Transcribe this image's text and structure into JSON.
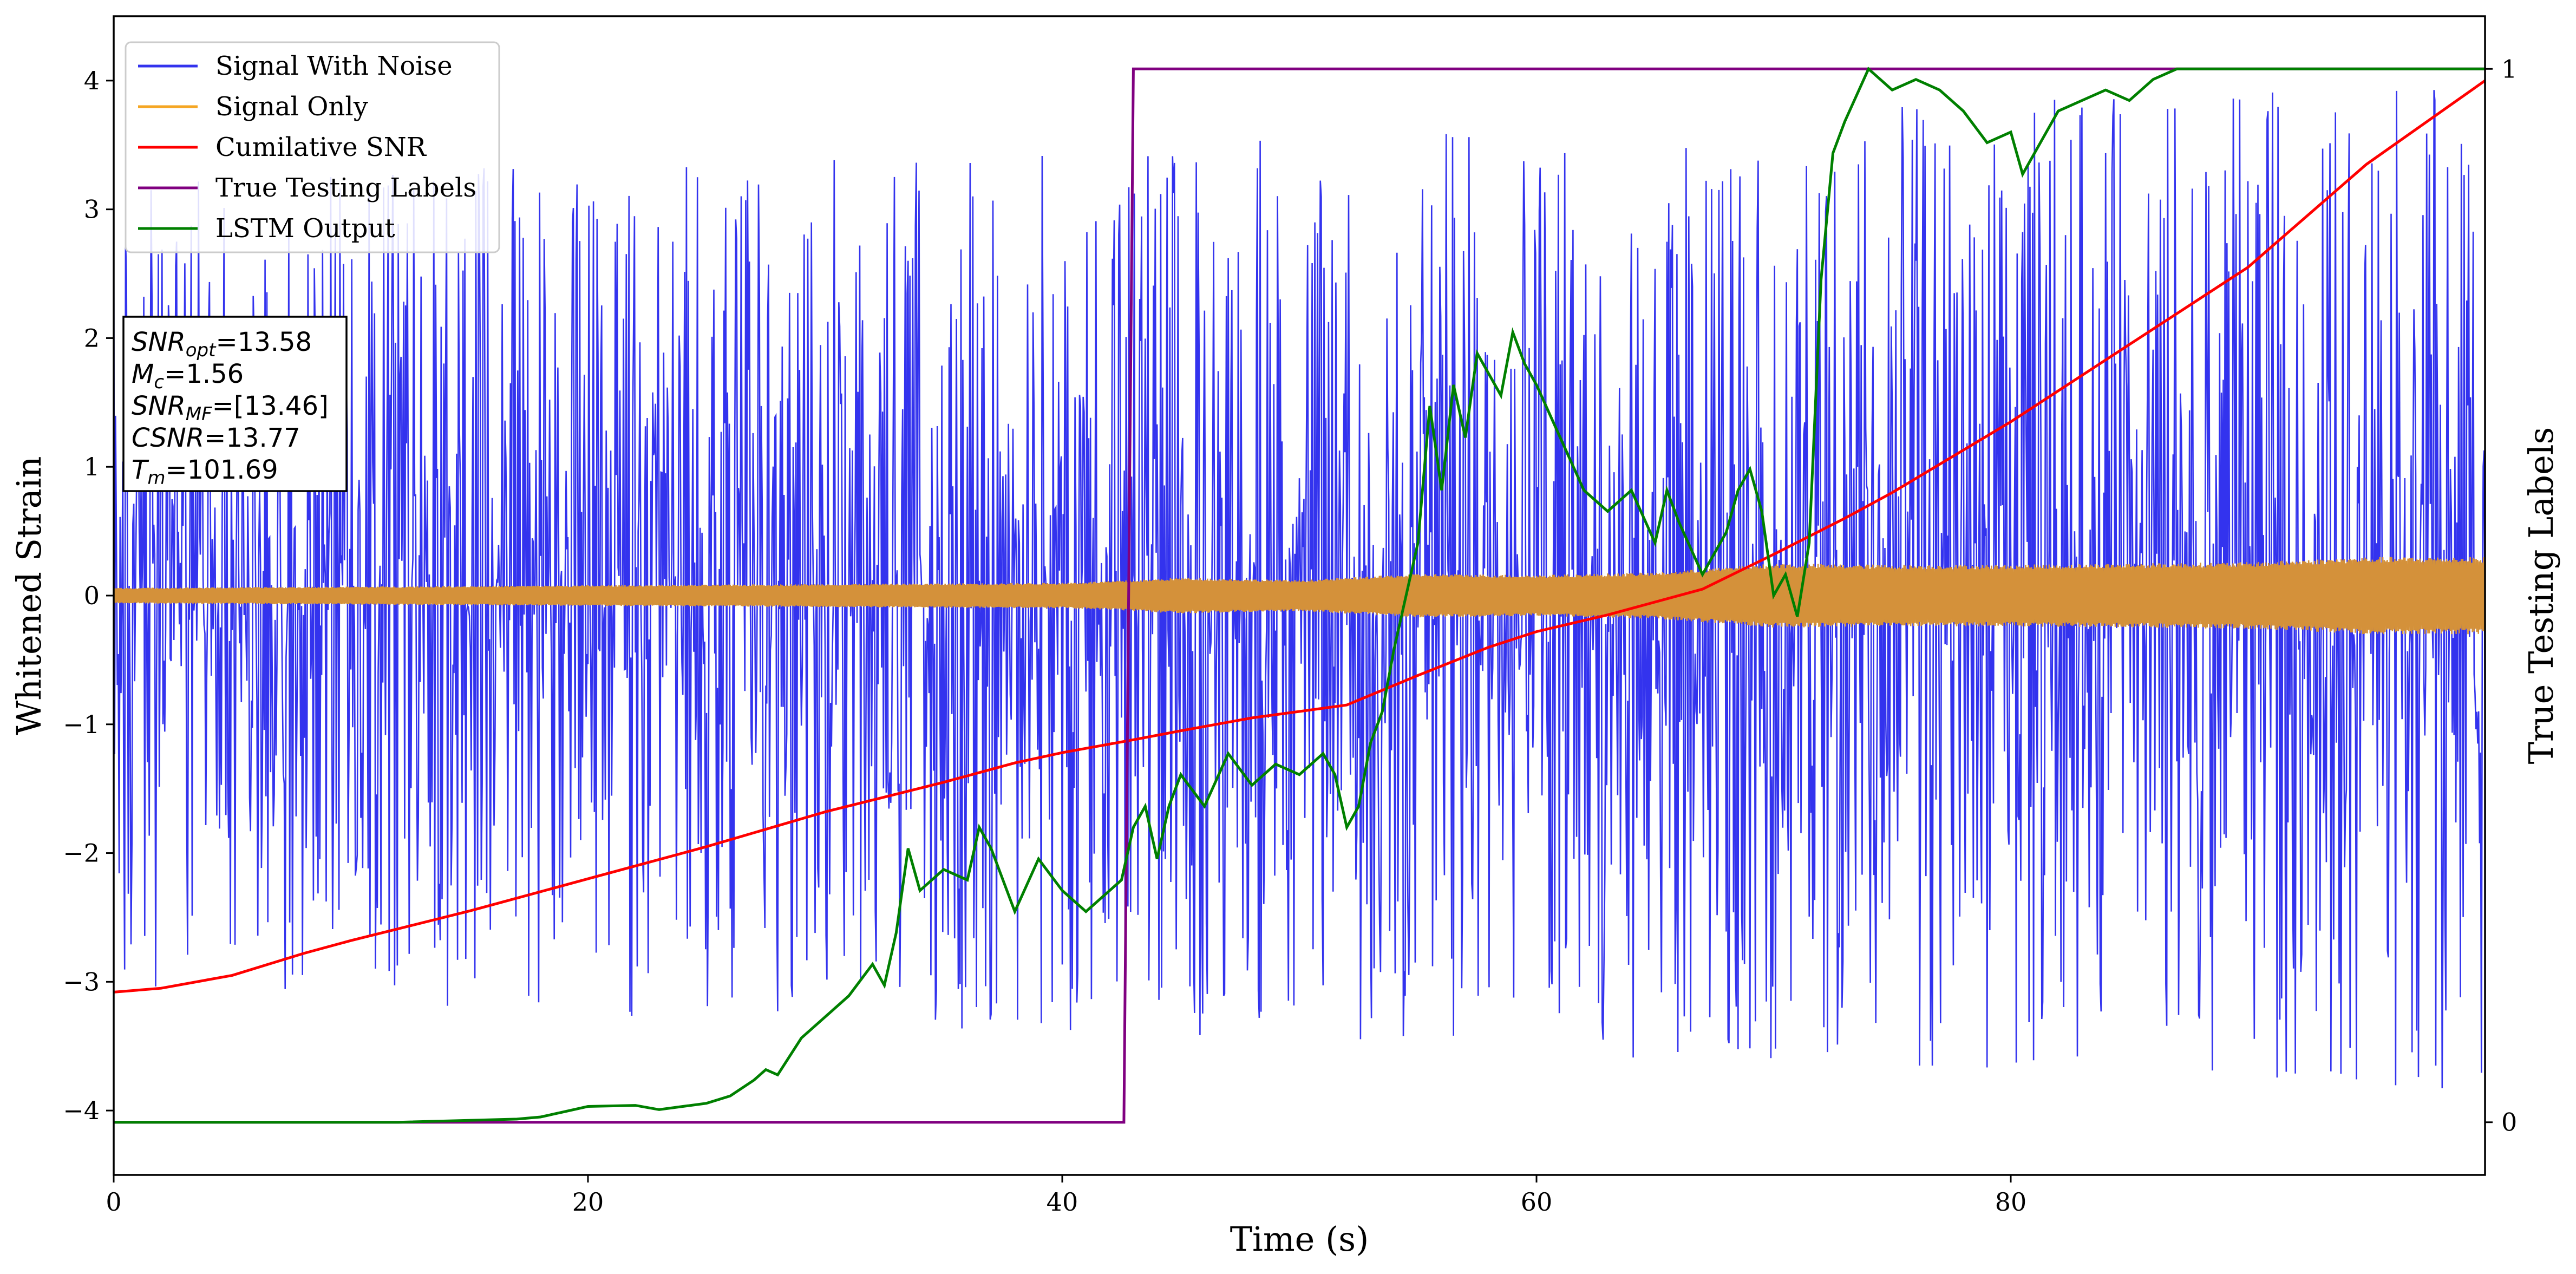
{
  "chart_data": {
    "type": "line",
    "xlabel": "Time (s)",
    "ylabel": "Whitened Strain",
    "y2label": "True Testing Labels",
    "xlim": [
      0,
      100
    ],
    "ylim": [
      -4.5,
      4.5
    ],
    "y2lim": [
      -0.05,
      1.05
    ],
    "xticks": [
      0,
      20,
      40,
      60,
      80
    ],
    "yticks": [
      -4,
      -3,
      -2,
      -1,
      0,
      1,
      2,
      3,
      4
    ],
    "y2ticks": [
      0,
      1
    ],
    "legend_position": "top-left",
    "legend": [
      {
        "label": "Signal With Noise",
        "color": "#3333ee"
      },
      {
        "label": "Signal Only",
        "color": "#f5a623"
      },
      {
        "label": "Cumilative SNR",
        "color": "#ff0000"
      },
      {
        "label": "True Testing Labels",
        "color": "#800080"
      },
      {
        "label": "LSTM Output",
        "color": "#008000"
      }
    ],
    "annotation": {
      "lines": [
        {
          "name": "SNR",
          "sub": "opt",
          "value": "=13.58"
        },
        {
          "name": "M",
          "sub": "c",
          "value": "=1.56"
        },
        {
          "name": "SNR",
          "sub": "MF",
          "value": "=[13.46]"
        },
        {
          "name": "CSNR",
          "sub": "",
          "value": "=13.77"
        },
        {
          "name": "T",
          "sub": "m",
          "value": "=101.69"
        }
      ]
    },
    "series": [
      {
        "name": "Signal With Noise",
        "color": "#3333ee",
        "description": "dense noisy strain",
        "envelope": {
          "x": [
            0,
            100
          ],
          "lower": [
            -3.1,
            -3.9
          ],
          "upper": [
            3.2,
            4.0
          ]
        }
      },
      {
        "name": "Signal Only",
        "color": "#d4913a",
        "amplitude": {
          "x": [
            0,
            10,
            20,
            30,
            40,
            43,
            45,
            50,
            55,
            60,
            65,
            68,
            70,
            75,
            80,
            85,
            90,
            95,
            100
          ],
          "a": [
            0.06,
            0.07,
            0.08,
            0.09,
            0.1,
            0.12,
            0.14,
            0.12,
            0.17,
            0.16,
            0.18,
            0.22,
            0.25,
            0.24,
            0.24,
            0.25,
            0.26,
            0.3,
            0.3
          ]
        }
      },
      {
        "name": "Cumilative SNR",
        "color": "#ff0000",
        "x": [
          0,
          2,
          5,
          8,
          10,
          15,
          20,
          25,
          30,
          35,
          38,
          40,
          43,
          45,
          48,
          52,
          55,
          58,
          60,
          63,
          67,
          70,
          73,
          75,
          80,
          85,
          90,
          95,
          100
        ],
        "y": [
          -3.08,
          -3.05,
          -2.95,
          -2.78,
          -2.68,
          -2.45,
          -2.2,
          -1.95,
          -1.68,
          -1.45,
          -1.3,
          -1.22,
          -1.12,
          -1.05,
          -0.95,
          -0.85,
          -0.62,
          -0.4,
          -0.28,
          -0.15,
          0.05,
          0.32,
          0.6,
          0.8,
          1.35,
          1.95,
          2.55,
          3.35,
          4.0
        ]
      },
      {
        "name": "True Testing Labels",
        "color": "#800080",
        "axis": "y2",
        "x": [
          0,
          42.6,
          43.0,
          100
        ],
        "y": [
          0,
          0,
          1,
          1
        ]
      },
      {
        "name": "LSTM Output",
        "color": "#008000",
        "axis": "y2",
        "x": [
          0,
          12,
          17,
          18,
          19,
          20,
          22,
          23,
          24,
          25,
          26,
          27,
          27.5,
          28,
          29,
          30,
          31,
          32,
          32.5,
          33,
          33.5,
          34,
          35,
          36,
          36.5,
          37,
          38,
          39,
          40,
          41,
          42,
          42.5,
          43,
          43.5,
          44,
          44.5,
          45,
          46,
          47,
          48,
          49,
          50,
          51,
          51.5,
          52,
          52.5,
          53,
          53.5,
          54,
          55,
          55.5,
          56,
          56.5,
          57,
          57.5,
          58,
          58.5,
          59,
          59.5,
          60,
          61,
          62,
          63,
          64,
          65,
          65.5,
          66,
          67,
          68,
          68.5,
          69,
          69.5,
          70,
          70.5,
          71,
          71.5,
          72,
          72.5,
          73,
          74,
          75,
          76,
          77,
          78,
          79,
          80,
          80.5,
          81,
          82,
          83,
          84,
          85,
          86,
          87,
          88,
          89,
          90,
          100
        ],
        "y": [
          0,
          0,
          0.003,
          0.005,
          0.01,
          0.015,
          0.016,
          0.012,
          0.015,
          0.018,
          0.025,
          0.04,
          0.05,
          0.045,
          0.08,
          0.1,
          0.12,
          0.15,
          0.13,
          0.18,
          0.26,
          0.22,
          0.24,
          0.23,
          0.28,
          0.26,
          0.2,
          0.25,
          0.22,
          0.2,
          0.22,
          0.23,
          0.28,
          0.3,
          0.25,
          0.3,
          0.33,
          0.3,
          0.35,
          0.32,
          0.34,
          0.33,
          0.35,
          0.33,
          0.28,
          0.3,
          0.36,
          0.39,
          0.45,
          0.55,
          0.68,
          0.6,
          0.7,
          0.65,
          0.73,
          0.71,
          0.69,
          0.75,
          0.72,
          0.7,
          0.65,
          0.6,
          0.58,
          0.6,
          0.55,
          0.6,
          0.57,
          0.52,
          0.56,
          0.6,
          0.62,
          0.58,
          0.5,
          0.52,
          0.48,
          0.55,
          0.8,
          0.92,
          0.95,
          1.0,
          0.98,
          0.99,
          0.98,
          0.96,
          0.93,
          0.94,
          0.9,
          0.92,
          0.96,
          0.97,
          0.98,
          0.97,
          0.99,
          1.0,
          1.0,
          1.0,
          1.0,
          1.0
        ]
      }
    ]
  }
}
